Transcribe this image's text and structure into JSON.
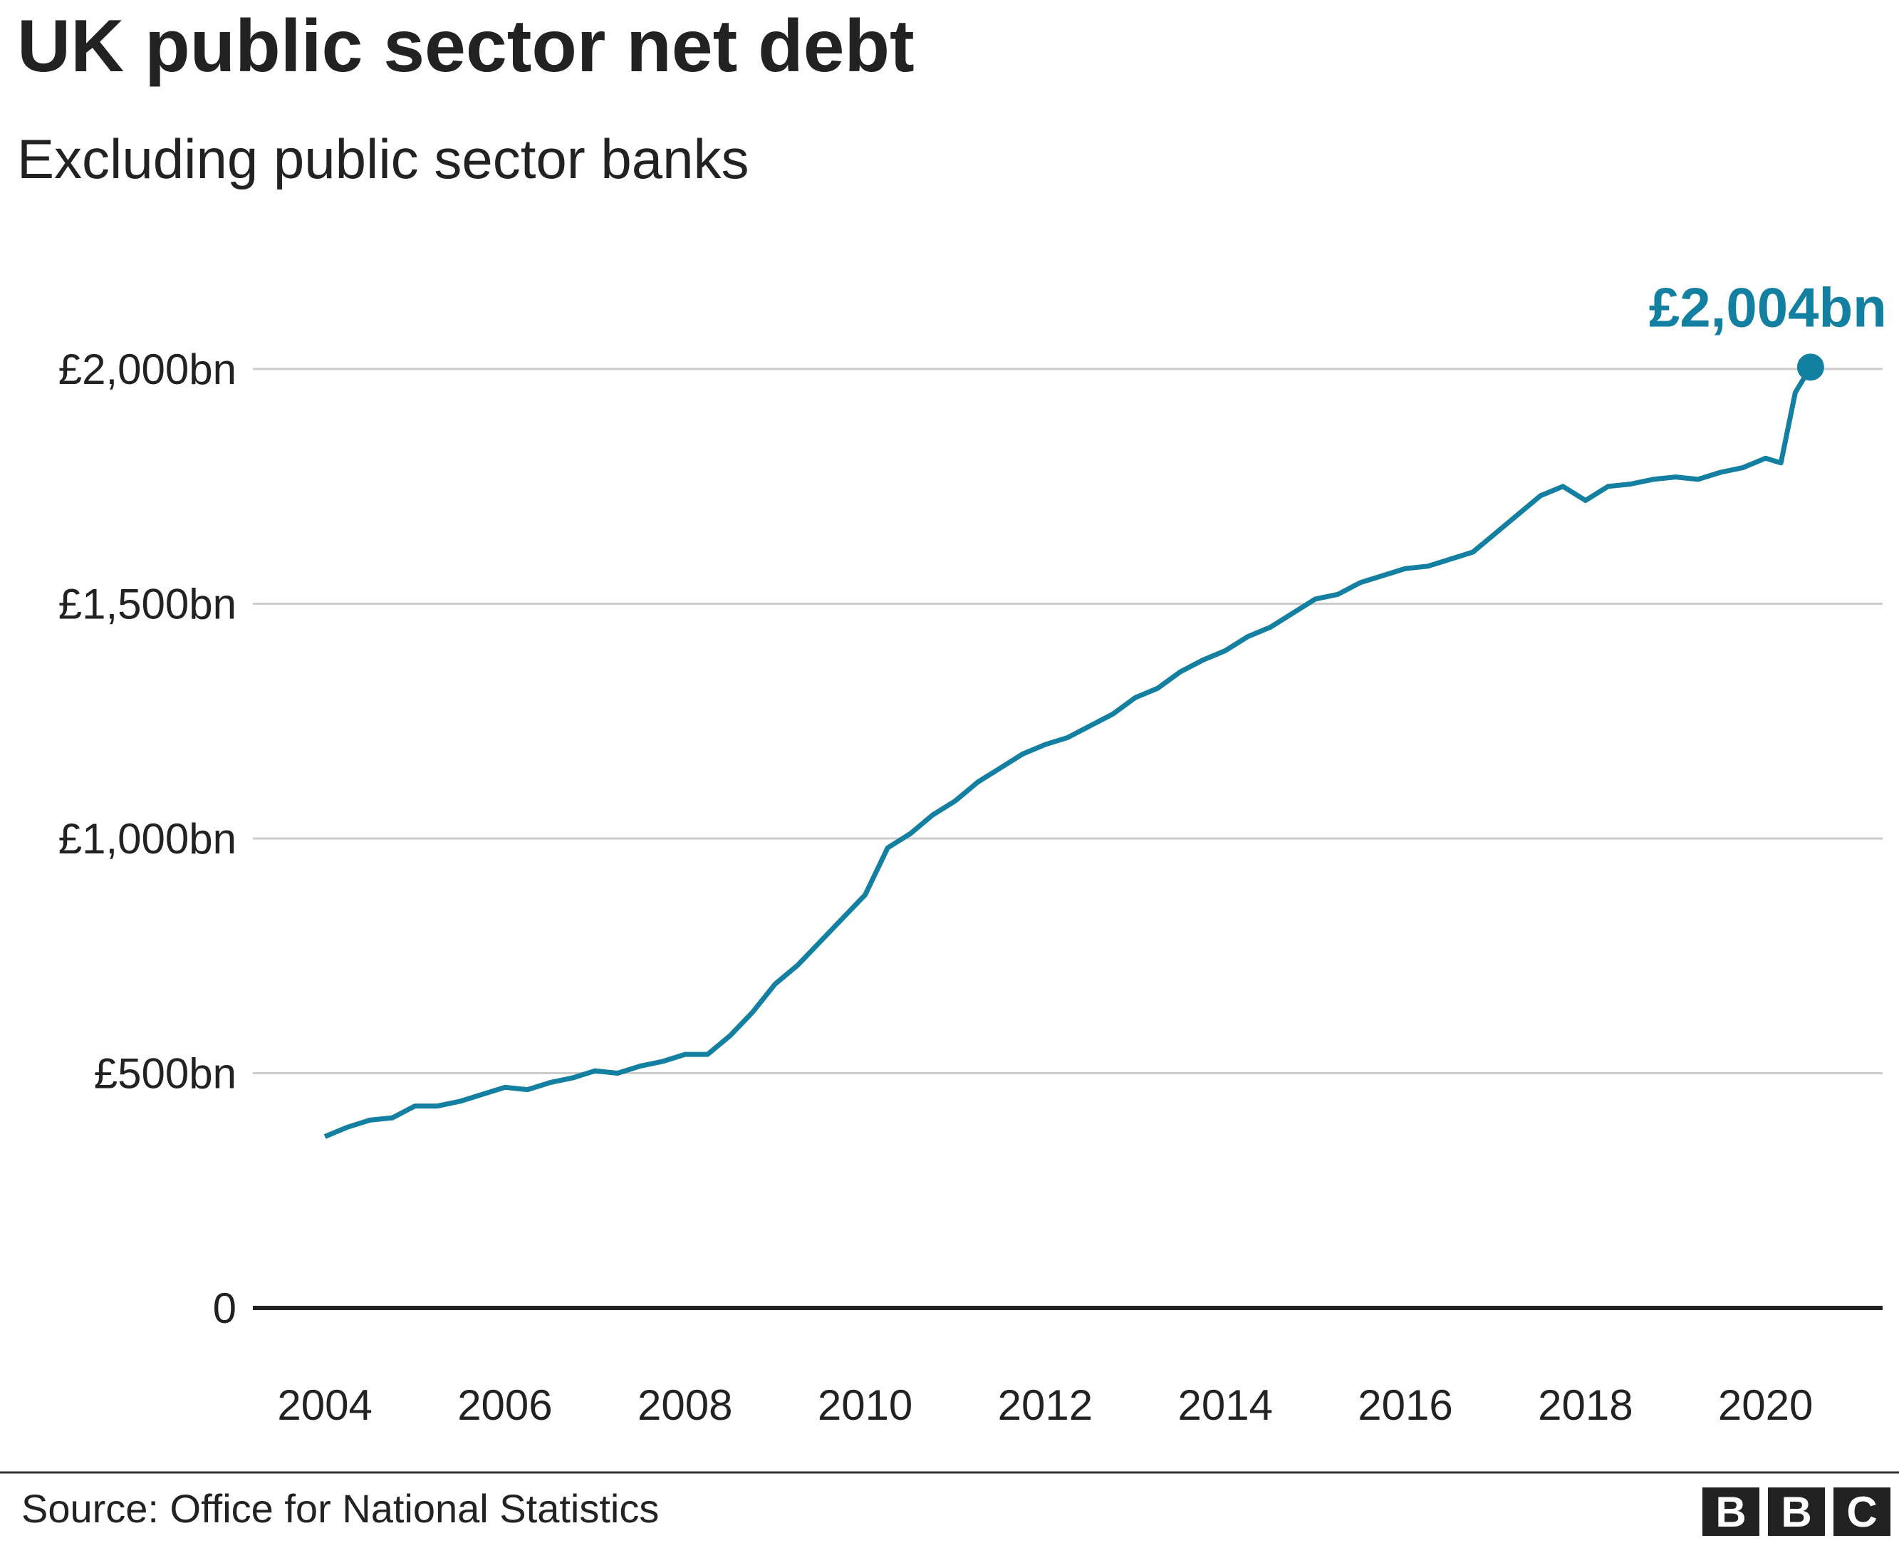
{
  "chart_data": {
    "type": "line",
    "title": "UK public sector net debt",
    "subtitle": "Excluding public sector banks",
    "source": "Source: Office for National Statistics",
    "logo": [
      "B",
      "B",
      "C"
    ],
    "x": [
      2004.0,
      2004.25,
      2004.5,
      2004.75,
      2005.0,
      2005.25,
      2005.5,
      2005.75,
      2006.0,
      2006.25,
      2006.5,
      2006.75,
      2007.0,
      2007.25,
      2007.5,
      2007.75,
      2008.0,
      2008.25,
      2008.5,
      2008.75,
      2009.0,
      2009.25,
      2009.5,
      2009.75,
      2010.0,
      2010.25,
      2010.5,
      2010.75,
      2011.0,
      2011.25,
      2011.5,
      2011.75,
      2012.0,
      2012.25,
      2012.5,
      2012.75,
      2013.0,
      2013.25,
      2013.5,
      2013.75,
      2014.0,
      2014.25,
      2014.5,
      2014.75,
      2015.0,
      2015.25,
      2015.5,
      2015.75,
      2016.0,
      2016.25,
      2016.5,
      2016.75,
      2017.0,
      2017.25,
      2017.5,
      2017.75,
      2018.0,
      2018.25,
      2018.5,
      2018.75,
      2019.0,
      2019.25,
      2019.5,
      2019.75,
      2020.0,
      2020.17,
      2020.33,
      2020.5
    ],
    "series": [
      {
        "name": "UK public sector net debt",
        "color": "#1380a1",
        "values": [
          365,
          385,
          400,
          405,
          430,
          430,
          440,
          455,
          470,
          465,
          480,
          490,
          505,
          500,
          515,
          525,
          540,
          540,
          580,
          630,
          690,
          730,
          780,
          830,
          880,
          980,
          1010,
          1050,
          1080,
          1120,
          1150,
          1180,
          1200,
          1215,
          1240,
          1265,
          1300,
          1320,
          1355,
          1380,
          1400,
          1430,
          1450,
          1480,
          1510,
          1520,
          1545,
          1560,
          1575,
          1580,
          1595,
          1610,
          1650,
          1690,
          1730,
          1750,
          1720,
          1750,
          1755,
          1765,
          1770,
          1765,
          1780,
          1790,
          1810,
          1800,
          1950,
          2004
        ],
        "end_label": {
          "value": 2004,
          "label": "£2,004bn"
        }
      }
    ],
    "xlim": [
      2003.2,
      2021.3
    ],
    "xticks": [
      2004,
      2006,
      2008,
      2010,
      2012,
      2014,
      2016,
      2018,
      2020
    ],
    "ylim": [
      0,
      2000
    ],
    "yticks": [
      0,
      {
        "value": 500,
        "label": "£500bn"
      },
      {
        "value": 1000,
        "label": "£1,000bn"
      },
      {
        "value": 1500,
        "label": "£1,500bn"
      },
      {
        "value": 2000,
        "label": "£2,000bn"
      }
    ],
    "grid": true
  }
}
